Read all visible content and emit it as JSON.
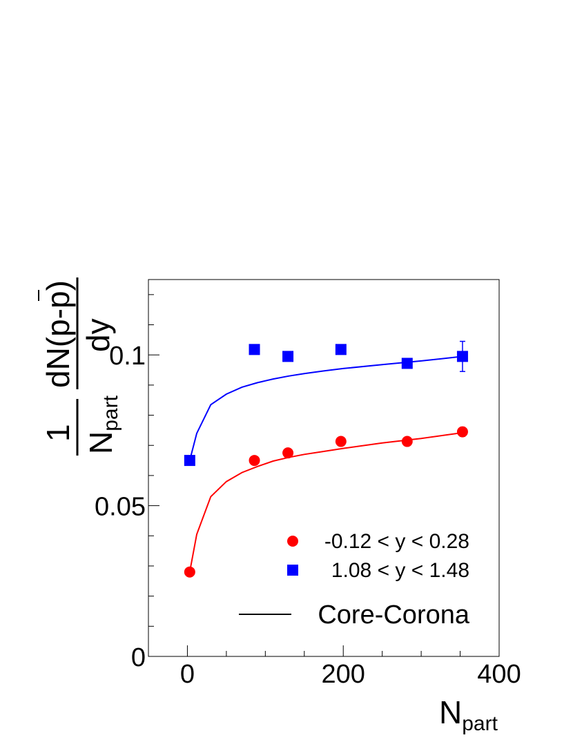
{
  "chart_data": {
    "type": "scatter",
    "xlabel": "N",
    "xlabel_sub": "part",
    "ylabel": {
      "prefactor_num": "1",
      "prefactor_den": "N",
      "prefactor_den_sub": "part",
      "deriv_num": "dN(p-p)",
      "deriv_den": "dy"
    },
    "xlim": [
      -50,
      400
    ],
    "ylim": [
      0,
      0.125
    ],
    "x_ticks": [
      0,
      200,
      400
    ],
    "x_tick_labels": [
      "0",
      "200",
      "400"
    ],
    "y_ticks": [
      0,
      0.05,
      0.1
    ],
    "y_tick_labels": [
      "0",
      "0.05",
      "0.1"
    ],
    "grid": false,
    "legend_position": "bottom-right",
    "series": [
      {
        "name": "-0.12 < y < 0.28",
        "marker": "circle",
        "color": "#ff0000",
        "x": [
          3,
          86,
          129,
          197,
          282,
          353
        ],
        "y": [
          0.028,
          0.065,
          0.0675,
          0.0713,
          0.0713,
          0.0745
        ],
        "err": [
          0,
          0,
          0,
          0,
          0,
          0.0015
        ]
      },
      {
        "name": "1.08 < y < 1.48",
        "marker": "square",
        "color": "#0000ff",
        "x": [
          3,
          86,
          129,
          197,
          282,
          353
        ],
        "y": [
          0.065,
          0.1018,
          0.0995,
          0.1018,
          0.0972,
          0.0995
        ],
        "err": [
          0,
          0,
          0,
          0,
          0,
          0.005
        ]
      }
    ],
    "curves": [
      {
        "name": "Core-Corona",
        "color": "#ff0000",
        "x": [
          3,
          12,
          30,
          50,
          70,
          90,
          110,
          130,
          150,
          175,
          200,
          250,
          300,
          353
        ],
        "y": [
          0.028,
          0.0405,
          0.053,
          0.058,
          0.061,
          0.063,
          0.0648,
          0.066,
          0.067,
          0.068,
          0.069,
          0.0708,
          0.0723,
          0.0742
        ]
      },
      {
        "name": "Core-Corona",
        "color": "#0000ff",
        "x": [
          3,
          12,
          30,
          50,
          70,
          90,
          110,
          130,
          150,
          175,
          200,
          250,
          300,
          353
        ],
        "y": [
          0.065,
          0.074,
          0.0835,
          0.087,
          0.0893,
          0.0908,
          0.092,
          0.093,
          0.0938,
          0.0947,
          0.0955,
          0.0968,
          0.098,
          0.0995
        ]
      }
    ],
    "legend": [
      {
        "label": "-0.12 < y < 0.28",
        "marker": "circle",
        "color": "#ff0000"
      },
      {
        "label": "1.08 < y < 1.48",
        "marker": "square",
        "color": "#0000ff"
      },
      {
        "label": "Core-Corona",
        "marker": "line",
        "color": "#000000"
      }
    ]
  }
}
